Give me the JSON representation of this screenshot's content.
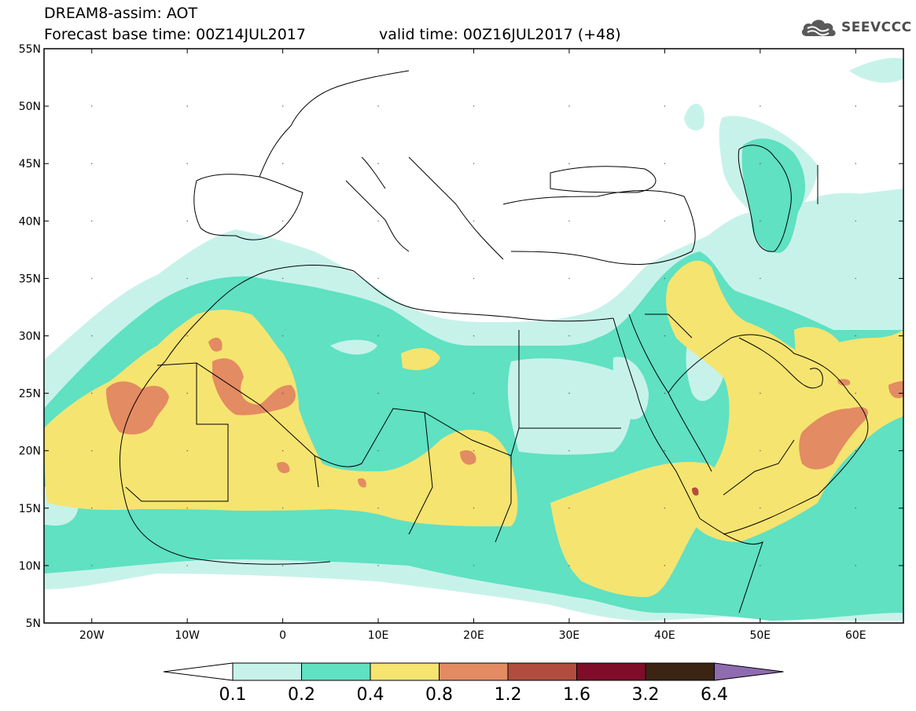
{
  "header": {
    "line1": "DREAM8-assim: AOT",
    "line2": "Forecast base time: 00Z14JUL2017",
    "line3": "valid time: 00Z16JUL2017 (+48)"
  },
  "logo": {
    "text": "SEEVCCC"
  },
  "map": {
    "extent": {
      "lon": [
        -25,
        65
      ],
      "lat": [
        5,
        55
      ]
    },
    "lat_labels": [
      "5N",
      "10N",
      "15N",
      "20N",
      "25N",
      "30N",
      "35N",
      "40N",
      "45N",
      "50N",
      "55N"
    ],
    "lon_labels": [
      "20W",
      "10W",
      "0",
      "10E",
      "20E",
      "30E",
      "40E",
      "50E",
      "60E"
    ]
  },
  "colorbar": {
    "colors": [
      "#ffffff",
      "#c7f2ea",
      "#5fe1c2",
      "#f6e470",
      "#e38b62",
      "#b14d3e",
      "#7f0d2a",
      "#3b2413",
      "#8f6bb0"
    ],
    "labels": [
      "0.1",
      "0.2",
      "0.4",
      "0.8",
      "1.2",
      "1.6",
      "3.2",
      "6.4"
    ]
  }
}
